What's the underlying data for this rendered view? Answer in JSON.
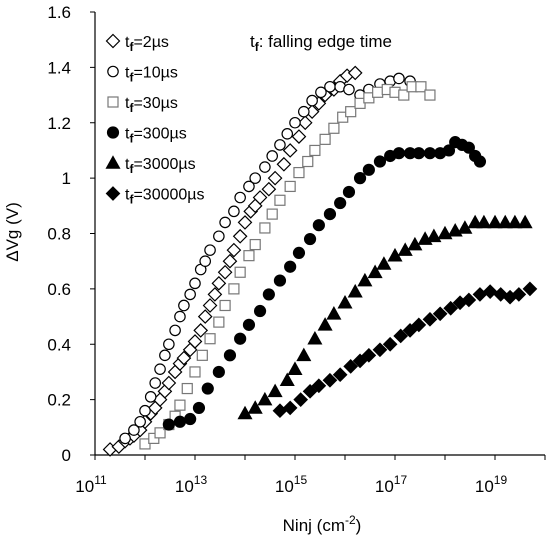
{
  "chart_data": {
    "type": "scatter",
    "xscale": "log",
    "xlim": [
      100000000000.0,
      1e+20
    ],
    "ylim": [
      0,
      1.6
    ],
    "xticks": [
      {
        "base": "10",
        "exp": "11"
      },
      {
        "base": "10",
        "exp": "13"
      },
      {
        "base": "10",
        "exp": "15"
      },
      {
        "base": "10",
        "exp": "17"
      },
      {
        "base": "10",
        "exp": "19"
      }
    ],
    "yticks": [
      "0",
      "0.2",
      "0.4",
      "0.6",
      "0.8",
      "1",
      "1.2",
      "1.4",
      "1.6"
    ],
    "xlabel_main": "Ninj (cm",
    "xlabel_sup": "-2",
    "xlabel_end": ")",
    "ylabel": "ΔVg (V)",
    "annotation": {
      "main": "t",
      "sub": "f",
      "rest": ": falling edge time"
    },
    "legend_placement": "top-left",
    "series": [
      {
        "name": "2µs",
        "label_sub": "f",
        "label_main": "t",
        "label_rest": "=2µs",
        "marker": "diamond-open",
        "points": [
          [
            200000000000.0,
            0.02
          ],
          [
            300000000000.0,
            0.03
          ],
          [
            400000000000.0,
            0.05
          ],
          [
            500000000000.0,
            0.06
          ],
          [
            600000000000.0,
            0.07
          ],
          [
            800000000000.0,
            0.09
          ],
          [
            1000000000000.0,
            0.12
          ],
          [
            1300000000000.0,
            0.15
          ],
          [
            1600000000000.0,
            0.17
          ],
          [
            2000000000000.0,
            0.2
          ],
          [
            2500000000000.0,
            0.23
          ],
          [
            3000000000000.0,
            0.26
          ],
          [
            4000000000000.0,
            0.3
          ],
          [
            5000000000000.0,
            0.33
          ],
          [
            6000000000000.0,
            0.35
          ],
          [
            8000000000000.0,
            0.38
          ],
          [
            10000000000000.0,
            0.41
          ],
          [
            13000000000000.0,
            0.45
          ],
          [
            16000000000000.0,
            0.5
          ],
          [
            20000000000000.0,
            0.54
          ],
          [
            25000000000000.0,
            0.58
          ],
          [
            30000000000000.0,
            0.62
          ],
          [
            40000000000000.0,
            0.66
          ],
          [
            50000000000000.0,
            0.7
          ],
          [
            60000000000000.0,
            0.74
          ],
          [
            80000000000000.0,
            0.79
          ],
          [
            100000000000000.0,
            0.84
          ],
          [
            130000000000000.0,
            0.88
          ],
          [
            160000000000000.0,
            0.9
          ],
          [
            200000000000000.0,
            0.93
          ],
          [
            300000000000000.0,
            0.96
          ],
          [
            400000000000000.0,
            1.0
          ],
          [
            600000000000000.0,
            1.05
          ],
          [
            800000000000000.0,
            1.1
          ],
          [
            1200000000000000.0,
            1.15
          ],
          [
            1600000000000000.0,
            1.2
          ],
          [
            2200000000000000.0,
            1.24
          ],
          [
            3000000000000000.0,
            1.27
          ],
          [
            4000000000000000.0,
            1.3
          ],
          [
            6000000000000000.0,
            1.32
          ],
          [
            8000000000000000.0,
            1.35
          ],
          [
            1.1e+16,
            1.37
          ],
          [
            1.6e+16,
            1.38
          ]
        ]
      },
      {
        "name": "10µs",
        "label_sub": "f",
        "label_main": "t",
        "label_rest": "=10µs",
        "marker": "circle-open",
        "points": [
          [
            400000000000.0,
            0.06
          ],
          [
            600000000000.0,
            0.09
          ],
          [
            800000000000.0,
            0.12
          ],
          [
            1000000000000.0,
            0.16
          ],
          [
            1300000000000.0,
            0.21
          ],
          [
            1600000000000.0,
            0.26
          ],
          [
            2000000000000.0,
            0.31
          ],
          [
            2500000000000.0,
            0.36
          ],
          [
            3000000000000.0,
            0.4
          ],
          [
            4000000000000.0,
            0.45
          ],
          [
            5000000000000.0,
            0.5
          ],
          [
            6000000000000.0,
            0.54
          ],
          [
            8000000000000.0,
            0.58
          ],
          [
            10000000000000.0,
            0.62
          ],
          [
            13000000000000.0,
            0.67
          ],
          [
            16000000000000.0,
            0.7
          ],
          [
            20000000000000.0,
            0.74
          ],
          [
            30000000000000.0,
            0.79
          ],
          [
            40000000000000.0,
            0.84
          ],
          [
            60000000000000.0,
            0.88
          ],
          [
            80000000000000.0,
            0.93
          ],
          [
            120000000000000.0,
            0.97
          ],
          [
            160000000000000.0,
            1.0
          ],
          [
            250000000000000.0,
            1.04
          ],
          [
            350000000000000.0,
            1.08
          ],
          [
            500000000000000.0,
            1.12
          ],
          [
            700000000000000.0,
            1.16
          ],
          [
            1000000000000000.0,
            1.2
          ],
          [
            1500000000000000.0,
            1.24
          ],
          [
            2200000000000000.0,
            1.28
          ],
          [
            3300000000000000.0,
            1.31
          ],
          [
            5000000000000000.0,
            1.33
          ],
          [
            8000000000000000.0,
            1.33
          ],
          [
            1.2e+16,
            1.32
          ],
          [
            2e+16,
            1.3
          ],
          [
            3e+16,
            1.32
          ],
          [
            5e+16,
            1.34
          ],
          [
            8e+16,
            1.35
          ],
          [
            1.2e+17,
            1.36
          ],
          [
            2e+17,
            1.35
          ]
        ]
      },
      {
        "name": "30µs",
        "label_sub": "f",
        "label_main": "t",
        "label_rest": "=30µs",
        "marker": "square-open",
        "points": [
          [
            1000000000000.0,
            0.04
          ],
          [
            1500000000000.0,
            0.06
          ],
          [
            2000000000000.0,
            0.08
          ],
          [
            3000000000000.0,
            0.11
          ],
          [
            4000000000000.0,
            0.14
          ],
          [
            5000000000000.0,
            0.18
          ],
          [
            7000000000000.0,
            0.24
          ],
          [
            10000000000000.0,
            0.3
          ],
          [
            14000000000000.0,
            0.36
          ],
          [
            20000000000000.0,
            0.42
          ],
          [
            30000000000000.0,
            0.48
          ],
          [
            40000000000000.0,
            0.54
          ],
          [
            60000000000000.0,
            0.6
          ],
          [
            80000000000000.0,
            0.66
          ],
          [
            120000000000000.0,
            0.72
          ],
          [
            160000000000000.0,
            0.76
          ],
          [
            250000000000000.0,
            0.82
          ],
          [
            350000000000000.0,
            0.87
          ],
          [
            500000000000000.0,
            0.92
          ],
          [
            800000000000000.0,
            0.97
          ],
          [
            1200000000000000.0,
            1.02
          ],
          [
            1800000000000000.0,
            1.06
          ],
          [
            2500000000000000.0,
            1.1
          ],
          [
            4000000000000000.0,
            1.14
          ],
          [
            6000000000000000.0,
            1.18
          ],
          [
            9000000000000000.0,
            1.22
          ],
          [
            1.3e+16,
            1.24
          ],
          [
            2e+16,
            1.27
          ],
          [
            3e+16,
            1.29
          ],
          [
            4.5e+16,
            1.31
          ],
          [
            7e+16,
            1.32
          ],
          [
            1e+17,
            1.31
          ],
          [
            1.5e+17,
            1.3
          ],
          [
            2.2e+17,
            1.33
          ],
          [
            3.3e+17,
            1.33
          ],
          [
            5e+17,
            1.3
          ]
        ]
      },
      {
        "name": "300µs",
        "label_sub": "f",
        "label_main": "t",
        "label_rest": "=300µs",
        "marker": "circle-filled",
        "points": [
          [
            3000000000000.0,
            0.11
          ],
          [
            5000000000000.0,
            0.12
          ],
          [
            8000000000000.0,
            0.13
          ],
          [
            12000000000000.0,
            0.17
          ],
          [
            18000000000000.0,
            0.24
          ],
          [
            30000000000000.0,
            0.3
          ],
          [
            50000000000000.0,
            0.36
          ],
          [
            80000000000000.0,
            0.42
          ],
          [
            120000000000000.0,
            0.47
          ],
          [
            200000000000000.0,
            0.52
          ],
          [
            300000000000000.0,
            0.58
          ],
          [
            500000000000000.0,
            0.63
          ],
          [
            800000000000000.0,
            0.68
          ],
          [
            1200000000000000.0,
            0.73
          ],
          [
            2000000000000000.0,
            0.78
          ],
          [
            3000000000000000.0,
            0.83
          ],
          [
            5000000000000000.0,
            0.87
          ],
          [
            8000000000000000.0,
            0.91
          ],
          [
            1.2e+16,
            0.95
          ],
          [
            2e+16,
            1.0
          ],
          [
            3e+16,
            1.03
          ],
          [
            5e+16,
            1.06
          ],
          [
            8e+16,
            1.08
          ],
          [
            1.2e+17,
            1.09
          ],
          [
            2e+17,
            1.09
          ],
          [
            3e+17,
            1.09
          ],
          [
            5e+17,
            1.09
          ],
          [
            8e+17,
            1.09
          ],
          [
            1.2e+18,
            1.1
          ],
          [
            1.6e+18,
            1.13
          ],
          [
            2.2e+18,
            1.12
          ],
          [
            3e+18,
            1.11
          ],
          [
            4e+18,
            1.08
          ],
          [
            5e+18,
            1.06
          ]
        ]
      },
      {
        "name": "3000µs",
        "label_sub": "f",
        "label_main": "t",
        "label_rest": "=3000µs",
        "marker": "triangle-filled",
        "points": [
          [
            100000000000000.0,
            0.15
          ],
          [
            160000000000000.0,
            0.17
          ],
          [
            250000000000000.0,
            0.2
          ],
          [
            400000000000000.0,
            0.23
          ],
          [
            700000000000000.0,
            0.27
          ],
          [
            1000000000000000.0,
            0.31
          ],
          [
            1500000000000000.0,
            0.36
          ],
          [
            2500000000000000.0,
            0.42
          ],
          [
            4000000000000000.0,
            0.47
          ],
          [
            6000000000000000.0,
            0.51
          ],
          [
            1e+16,
            0.55
          ],
          [
            1.6e+16,
            0.59
          ],
          [
            2.5e+16,
            0.63
          ],
          [
            4e+16,
            0.66
          ],
          [
            6e+16,
            0.69
          ],
          [
            1e+17,
            0.72
          ],
          [
            1.6e+17,
            0.74
          ],
          [
            2.5e+17,
            0.76
          ],
          [
            4e+17,
            0.78
          ],
          [
            6e+17,
            0.79
          ],
          [
            1e+18,
            0.8
          ],
          [
            1.6e+18,
            0.81
          ],
          [
            2.5e+18,
            0.82
          ],
          [
            4e+18,
            0.84
          ],
          [
            6e+18,
            0.84
          ],
          [
            1e+19,
            0.84
          ],
          [
            1.6e+19,
            0.84
          ],
          [
            2.5e+19,
            0.84
          ],
          [
            4e+19,
            0.84
          ]
        ]
      },
      {
        "name": "30000µs",
        "label_sub": "f",
        "label_main": "t",
        "label_rest": "=30000µs",
        "marker": "diamond-filled",
        "points": [
          [
            500000000000000.0,
            0.16
          ],
          [
            800000000000000.0,
            0.17
          ],
          [
            1300000000000000.0,
            0.2
          ],
          [
            2000000000000000.0,
            0.23
          ],
          [
            3000000000000000.0,
            0.25
          ],
          [
            5000000000000000.0,
            0.27
          ],
          [
            8000000000000000.0,
            0.29
          ],
          [
            1.3e+16,
            0.32
          ],
          [
            2e+16,
            0.34
          ],
          [
            3e+16,
            0.36
          ],
          [
            5e+16,
            0.38
          ],
          [
            8e+16,
            0.4
          ],
          [
            1.3e+17,
            0.43
          ],
          [
            2e+17,
            0.45
          ],
          [
            3e+17,
            0.47
          ],
          [
            5e+17,
            0.49
          ],
          [
            8e+17,
            0.51
          ],
          [
            1.3e+18,
            0.53
          ],
          [
            2e+18,
            0.55
          ],
          [
            3e+18,
            0.56
          ],
          [
            5e+18,
            0.58
          ],
          [
            8e+18,
            0.59
          ],
          [
            1.3e+19,
            0.58
          ],
          [
            2e+19,
            0.57
          ],
          [
            3e+19,
            0.58
          ],
          [
            5e+19,
            0.6
          ]
        ]
      }
    ]
  }
}
